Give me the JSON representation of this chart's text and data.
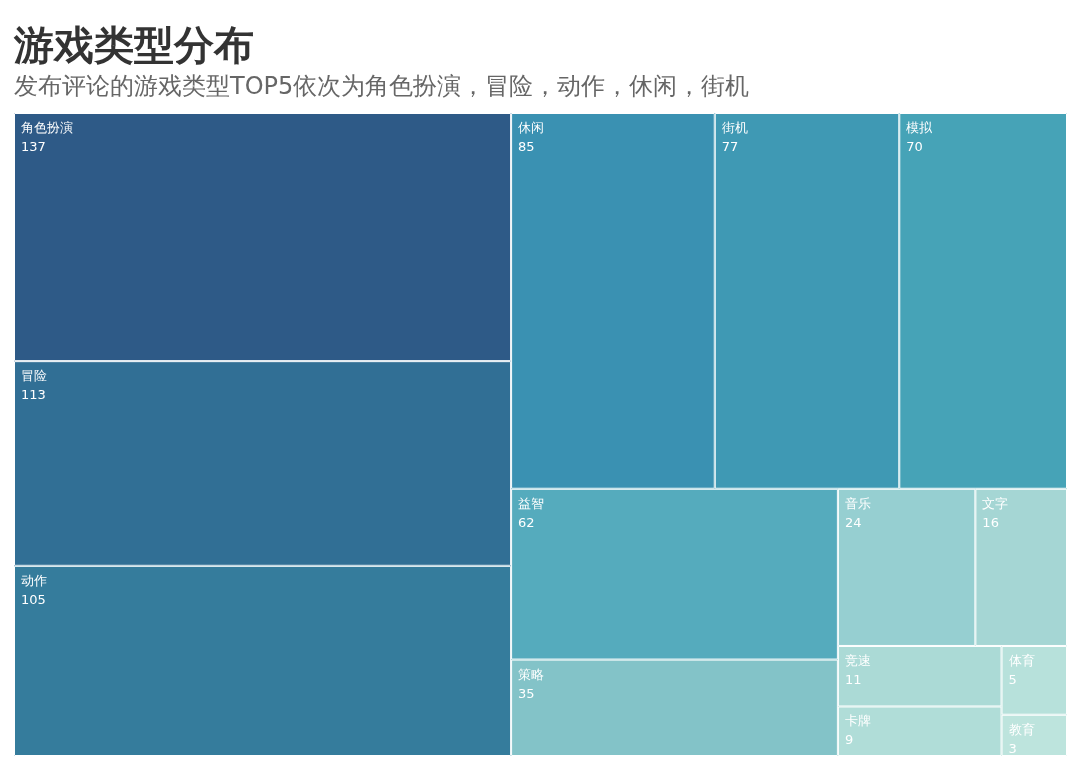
{
  "chart_data": {
    "type": "other",
    "title": "游戏类型分布",
    "subtitle": "发布评论的游戏类型TOP5依次为角色扮演，冒险，动作，休闲，街机",
    "categories": [
      "角色扮演",
      "冒险",
      "动作",
      "休闲",
      "街机",
      "模拟",
      "益智",
      "策略",
      "音乐",
      "文字",
      "竞速",
      "卡牌",
      "体育",
      "教育"
    ],
    "values": [
      137,
      113,
      105,
      85,
      77,
      70,
      62,
      35,
      24,
      16,
      11,
      9,
      5,
      3
    ],
    "data_labels": true,
    "colors": [
      "#2e5a87",
      "#316f95",
      "#357c9c",
      "#3a91b2",
      "#3f99b4",
      "#46a3b7",
      "#55abbd",
      "#83c3c8",
      "#96cfd1",
      "#a5d6d4",
      "#abdad6",
      "#b0ddd8",
      "#b7e1db",
      "#bde4dd"
    ]
  }
}
